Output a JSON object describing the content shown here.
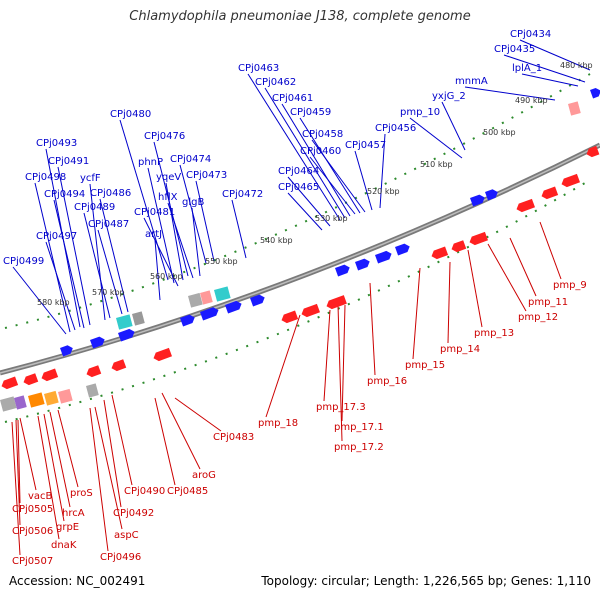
{
  "title": "Chlamydophila pneumoniae J138, complete genome",
  "footer": {
    "accession": "Accession: NC_002491",
    "summary": "Topology: circular; Length: 1,226,565 bp; Genes: 1,110"
  },
  "colors": {
    "forward": "#1a1aff",
    "reverse": "#ff2020",
    "forward_label": "#0000cc",
    "reverse_label": "#cc0000",
    "backbone": "#7a7a7a",
    "ticks": "#228b22"
  },
  "ruler_labels": [
    "480 kbp",
    "490 kbp",
    "500 kbp",
    "510 kbp",
    "520 kbp",
    "530 kbp",
    "540 kbp",
    "550 kbp",
    "560 kbp",
    "570 kbp",
    "580 kbp"
  ],
  "forward_labels": [
    "CPj0434",
    "CPj0435",
    "lplA_1",
    "mnmA",
    "yxjG_2",
    "pmp_10",
    "CPj0456",
    "CPj0457",
    "CPj0458",
    "CPj0459",
    "CPj0460",
    "CPj0461",
    "CPj0462",
    "CPj0463",
    "CPj0464",
    "CPj0465",
    "CPj0472",
    "CPj0473",
    "CPj0474",
    "CPj0476",
    "CPj0480",
    "CPj0481",
    "phnP",
    "yqeV",
    "hflX",
    "glgB",
    "artJ",
    "CPj0486",
    "CPj0487",
    "CPj0489",
    "ycfF",
    "CPj0491",
    "CPj0493",
    "CPj0494",
    "CPj0497",
    "CPj0498",
    "CPj0499"
  ],
  "reverse_labels": [
    "pmp_9",
    "pmp_11",
    "pmp_12",
    "pmp_13",
    "pmp_14",
    "pmp_15",
    "pmp_16",
    "pmp_17.1",
    "pmp_17.2",
    "pmp_17.3",
    "pmp_18",
    "CPj0483",
    "aroG",
    "CPj0485",
    "CPj0490",
    "CPj0492",
    "aspC",
    "CPj0496",
    "proS",
    "hrcA",
    "grpE",
    "dnaK",
    "vacB",
    "CPj0505",
    "CPj0506",
    "CPj0507"
  ]
}
